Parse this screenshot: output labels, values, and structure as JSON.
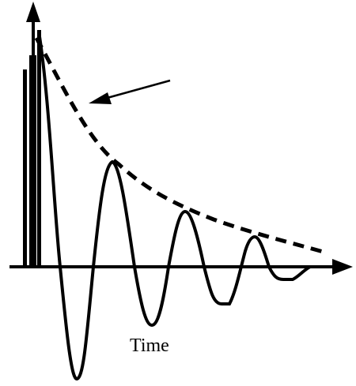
{
  "diagram": {
    "x_axis_label": "Time",
    "ink_color": "#000000",
    "background_color": "#ffffff"
  }
}
